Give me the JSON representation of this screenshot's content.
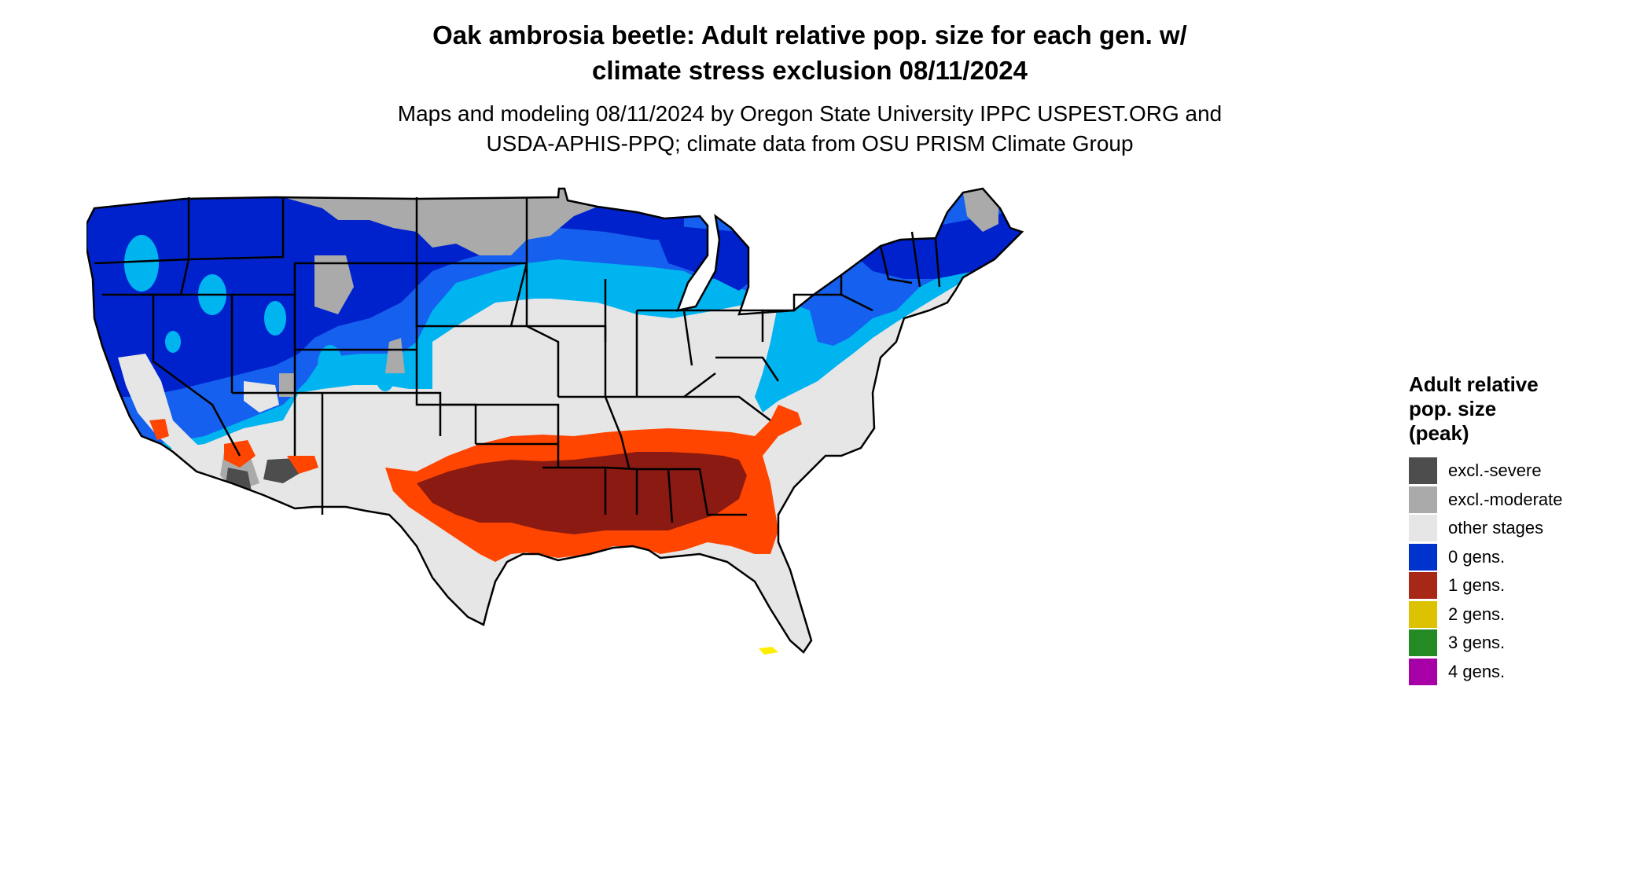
{
  "title": {
    "line1": "Oak ambrosia beetle: Adult relative pop. size for each gen. w/",
    "line2": "climate stress exclusion 08/11/2024"
  },
  "subtitle": {
    "line1": "Maps and modeling 08/11/2024 by Oregon State University IPPC USPEST.ORG and",
    "line2": "USDA-APHIS-PPQ; climate data from OSU PRISM Climate Group"
  },
  "legend": {
    "title_lines": [
      "Adult relative",
      "pop. size",
      "(peak)"
    ],
    "items": [
      {
        "label": "excl.-severe",
        "color": "#4d4d4d"
      },
      {
        "label": "excl.-moderate",
        "color": "#aaaaaa"
      },
      {
        "label": "other stages",
        "color": "#e6e6e6"
      },
      {
        "label": "0 gens.",
        "color": "#0033cc"
      },
      {
        "label": "1 gens.",
        "color": "#a82817"
      },
      {
        "label": "2 gens.",
        "color": "#dcc200"
      },
      {
        "label": "3 gens.",
        "color": "#248a24"
      },
      {
        "label": "4 gens.",
        "color": "#a600a6"
      }
    ]
  },
  "map": {
    "region": "Contiguous United States",
    "colors": {
      "ocean": "#ffffff",
      "land_other": "#e6e6e6",
      "zero_gen_dark": "#0022cc",
      "zero_gen_mid": "#1560ee",
      "zero_gen_light": "#00b4f0",
      "one_gen_light": "#ff4500",
      "one_gen_dark": "#8b1a12",
      "excl_moderate": "#aaaaaa",
      "excl_severe": "#4d4d4d",
      "two_gen": "#ffee00",
      "borders": "#000000"
    }
  }
}
